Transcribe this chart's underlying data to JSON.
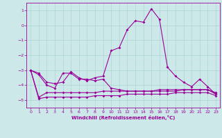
{
  "xlabel": "Windchill (Refroidissement éolien,°C)",
  "x": [
    0,
    1,
    2,
    3,
    4,
    5,
    6,
    7,
    8,
    9,
    10,
    11,
    12,
    13,
    14,
    15,
    16,
    17,
    18,
    19,
    20,
    21,
    22,
    23
  ],
  "line1": [
    -3.0,
    -3.2,
    -3.8,
    -3.9,
    -3.8,
    -3.1,
    -3.5,
    -3.7,
    -3.5,
    -3.4,
    -1.7,
    -1.5,
    -0.3,
    0.3,
    0.2,
    1.1,
    0.4,
    -2.8,
    -3.4,
    -3.8,
    -4.1,
    -3.6,
    -4.1,
    -4.6
  ],
  "line2": [
    -3.0,
    -3.3,
    -4.0,
    -4.2,
    -3.2,
    -3.2,
    -3.6,
    -3.6,
    -3.7,
    -3.6,
    -4.2,
    -4.3,
    -4.4,
    -4.4,
    -4.4,
    -4.4,
    -4.4,
    -4.4,
    -4.4,
    -4.3,
    -4.3,
    -4.3,
    -4.3,
    -4.6
  ],
  "line3": [
    -3.0,
    -4.8,
    -4.5,
    -4.5,
    -4.5,
    -4.5,
    -4.5,
    -4.5,
    -4.5,
    -4.4,
    -4.4,
    -4.4,
    -4.4,
    -4.4,
    -4.4,
    -4.4,
    -4.3,
    -4.3,
    -4.3,
    -4.3,
    -4.3,
    -4.3,
    -4.3,
    -4.5
  ],
  "line4": [
    -3.0,
    -4.9,
    -4.8,
    -4.8,
    -4.8,
    -4.8,
    -4.8,
    -4.8,
    -4.7,
    -4.7,
    -4.7,
    -4.7,
    -4.6,
    -4.6,
    -4.6,
    -4.6,
    -4.6,
    -4.6,
    -4.5,
    -4.5,
    -4.5,
    -4.5,
    -4.5,
    -4.7
  ],
  "color": "#990099",
  "background": "#cce8e8",
  "grid_color": "#aad4d4",
  "ylim": [
    -5.5,
    1.5
  ],
  "xlim": [
    -0.5,
    23.5
  ],
  "yticks": [
    -5,
    -4,
    -3,
    -2,
    -1,
    0,
    1
  ],
  "xticks": [
    0,
    1,
    2,
    3,
    4,
    5,
    6,
    7,
    8,
    9,
    10,
    11,
    12,
    13,
    14,
    15,
    16,
    17,
    18,
    19,
    20,
    21,
    22,
    23
  ]
}
